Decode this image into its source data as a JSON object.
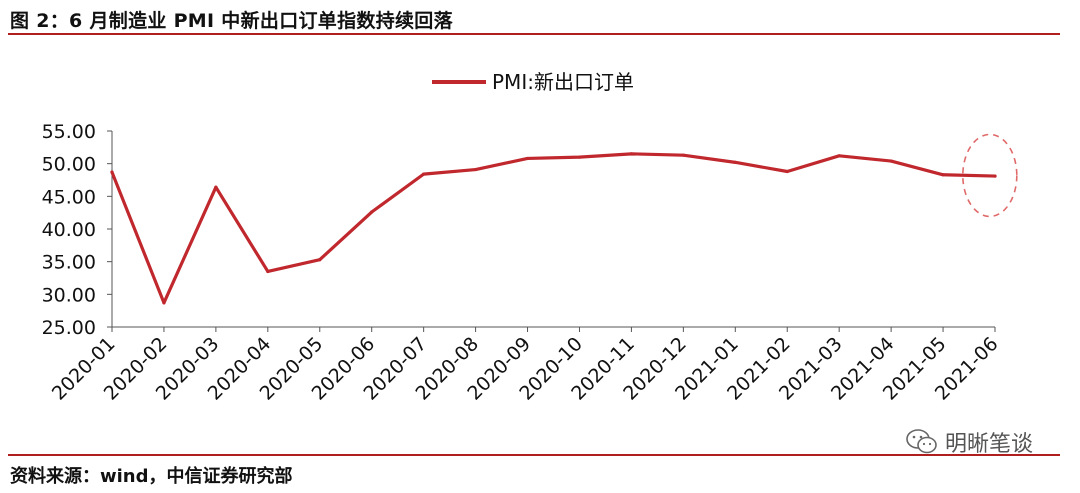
{
  "header": {
    "title": "图 2：6 月制造业 PMI 中新出口订单指数持续回落"
  },
  "footer": {
    "source": "资料来源：wind，中信证券研究部",
    "watermark": "明晰笔谈",
    "watermark_icon": "wechat-icon"
  },
  "colors": {
    "accent": "#c0282d",
    "rule": "#b01e1e",
    "axis": "#555555"
  },
  "chart_data": {
    "type": "line",
    "title": "",
    "xlabel": "",
    "ylabel": "",
    "categories": [
      "2020-01",
      "2020-02",
      "2020-03",
      "2020-04",
      "2020-05",
      "2020-06",
      "2020-07",
      "2020-08",
      "2020-09",
      "2020-10",
      "2020-11",
      "2020-12",
      "2021-01",
      "2021-02",
      "2021-03",
      "2021-04",
      "2021-05",
      "2021-06"
    ],
    "series": [
      {
        "name": "PMI:新出口订单",
        "color": "#c0282d",
        "values": [
          48.7,
          28.7,
          46.4,
          33.5,
          35.3,
          42.6,
          48.4,
          49.1,
          50.8,
          51.0,
          51.5,
          51.3,
          50.2,
          48.8,
          51.2,
          50.4,
          48.3,
          48.1
        ]
      }
    ],
    "ylim": [
      25,
      55
    ],
    "yticks": [
      "25.00",
      "30.00",
      "35.00",
      "40.00",
      "45.00",
      "50.00",
      "55.00"
    ],
    "grid": false,
    "legend": "top-center",
    "annotation": {
      "type": "dashed-ellipse",
      "highlight_categories": [
        "2021-05",
        "2021-06"
      ]
    }
  }
}
